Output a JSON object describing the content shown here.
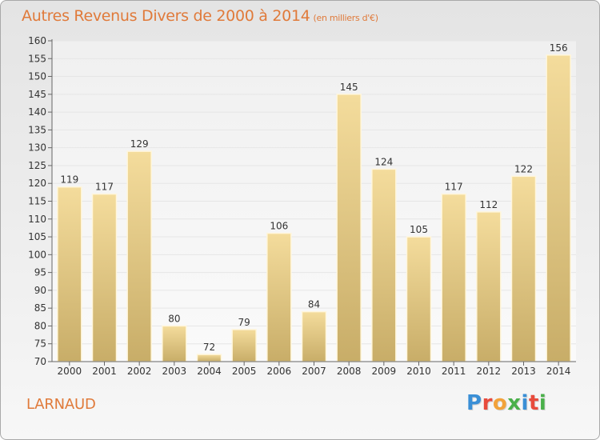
{
  "header": {
    "title": "Autres Revenus Divers de 2000 à 2014",
    "unit": "(en milliers d'€)"
  },
  "footer": {
    "commune": "LARNAUD",
    "logo_text": "Proxiti"
  },
  "colors": {
    "accent": "#e07a3a",
    "bar_top": "#f4dc9c",
    "bar_bottom": "#c8ad68",
    "axis": "#666666",
    "grid": "#e6e6e6"
  },
  "chart_data": {
    "type": "bar",
    "title": "Autres Revenus Divers de 2000 à 2014",
    "subtitle": "(en milliers d'€)",
    "xlabel": "",
    "ylabel": "",
    "categories": [
      "2000",
      "2001",
      "2002",
      "2003",
      "2004",
      "2005",
      "2006",
      "2007",
      "2008",
      "2009",
      "2010",
      "2011",
      "2012",
      "2013",
      "2014"
    ],
    "values": [
      119,
      117,
      129,
      80,
      72,
      79,
      106,
      84,
      145,
      124,
      105,
      117,
      112,
      122,
      156
    ],
    "ylim": [
      70,
      160
    ],
    "yticks": [
      70,
      75,
      80,
      85,
      90,
      95,
      100,
      105,
      110,
      115,
      120,
      125,
      130,
      135,
      140,
      145,
      150,
      155,
      160
    ],
    "grid": true,
    "legend": "none"
  }
}
